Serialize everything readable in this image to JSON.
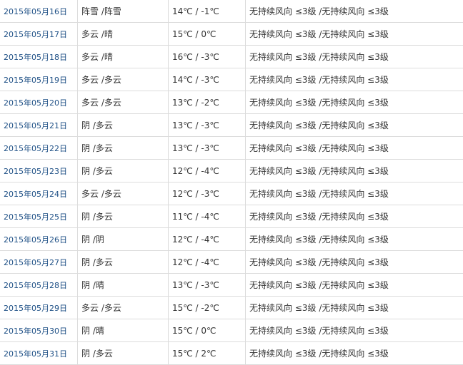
{
  "rows": [
    {
      "date": "2015年05月16日",
      "weather": "阵雪 /阵雪",
      "temp": "14℃ / -1℃",
      "wind": "无持续风向 ≤3级 /无持续风向 ≤3级"
    },
    {
      "date": "2015年05月17日",
      "weather": "多云 /晴",
      "temp": "15℃ / 0℃",
      "wind": "无持续风向 ≤3级 /无持续风向 ≤3级"
    },
    {
      "date": "2015年05月18日",
      "weather": "多云 /晴",
      "temp": "16℃ / -3℃",
      "wind": "无持续风向 ≤3级 /无持续风向 ≤3级"
    },
    {
      "date": "2015年05月19日",
      "weather": "多云 /多云",
      "temp": "14℃ / -3℃",
      "wind": "无持续风向 ≤3级 /无持续风向 ≤3级"
    },
    {
      "date": "2015年05月20日",
      "weather": "多云 /多云",
      "temp": "13℃ / -2℃",
      "wind": "无持续风向 ≤3级 /无持续风向 ≤3级"
    },
    {
      "date": "2015年05月21日",
      "weather": "阴 /多云",
      "temp": "13℃ / -3℃",
      "wind": "无持续风向 ≤3级 /无持续风向 ≤3级"
    },
    {
      "date": "2015年05月22日",
      "weather": "阴 /多云",
      "temp": "13℃ / -3℃",
      "wind": "无持续风向 ≤3级 /无持续风向 ≤3级"
    },
    {
      "date": "2015年05月23日",
      "weather": "阴 /多云",
      "temp": "12℃ / -4℃",
      "wind": "无持续风向 ≤3级 /无持续风向 ≤3级"
    },
    {
      "date": "2015年05月24日",
      "weather": "多云 /多云",
      "temp": "12℃ / -3℃",
      "wind": "无持续风向 ≤3级 /无持续风向 ≤3级"
    },
    {
      "date": "2015年05月25日",
      "weather": "阴 /多云",
      "temp": "11℃ / -4℃",
      "wind": "无持续风向 ≤3级 /无持续风向 ≤3级"
    },
    {
      "date": "2015年05月26日",
      "weather": "阴 /阴",
      "temp": "12℃ / -4℃",
      "wind": "无持续风向 ≤3级 /无持续风向 ≤3级"
    },
    {
      "date": "2015年05月27日",
      "weather": "阴 /多云",
      "temp": "12℃ / -4℃",
      "wind": "无持续风向 ≤3级 /无持续风向 ≤3级"
    },
    {
      "date": "2015年05月28日",
      "weather": "阴 /晴",
      "temp": "13℃ / -3℃",
      "wind": "无持续风向 ≤3级 /无持续风向 ≤3级"
    },
    {
      "date": "2015年05月29日",
      "weather": "多云 /多云",
      "temp": "15℃ / -2℃",
      "wind": "无持续风向 ≤3级 /无持续风向 ≤3级"
    },
    {
      "date": "2015年05月30日",
      "weather": "阴 /晴",
      "temp": "15℃ / 0℃",
      "wind": "无持续风向 ≤3级 /无持续风向 ≤3级"
    },
    {
      "date": "2015年05月31日",
      "weather": "阴 /多云",
      "temp": "15℃ / 2℃",
      "wind": "无持续风向 ≤3级 /无持续风向 ≤3级"
    }
  ]
}
